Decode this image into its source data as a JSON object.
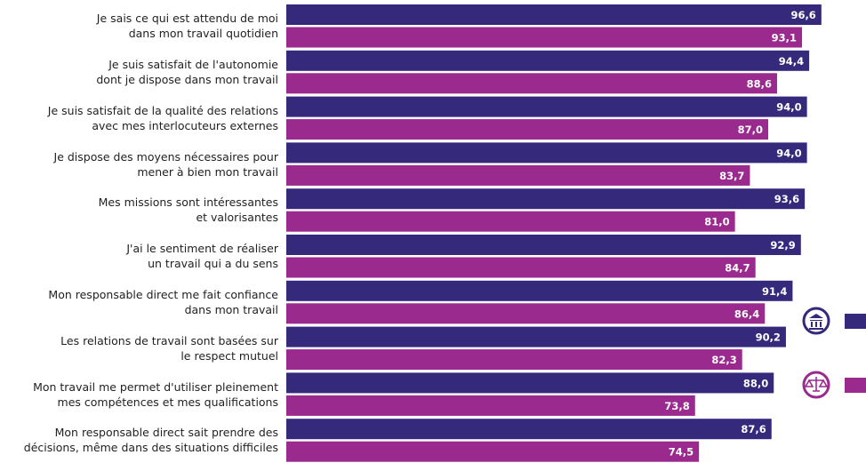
{
  "chart_data": {
    "type": "bar",
    "orientation": "horizontal",
    "categories": [
      "Je sais ce qui est attendu de moi\ndans mon travail quotidien",
      "Je suis satisfait de l'autonomie\ndont je dispose dans mon travail",
      "Je suis satisfait de la qualité des relations\navec mes interlocuteurs externes",
      "Je dispose des moyens nécessaires pour\nmener à bien mon travail",
      "Mes missions sont intéressantes\net valorisantes",
      "J'ai le sentiment de réaliser\nun travail qui a du sens",
      "Mon responsable direct me fait confiance\ndans mon travail",
      "Les relations de travail sont basées sur\nle respect mutuel",
      "Mon travail me permet d'utiliser pleinement\nmes compétences et mes qualifications",
      "Mon responsable direct sait prendre des\ndécisions, même dans des situations difficiles"
    ],
    "series": [
      {
        "color": "#35297c",
        "values": [
          96.6,
          94.4,
          94.0,
          94.0,
          93.6,
          92.9,
          91.4,
          90.2,
          88.0,
          87.6
        ],
        "value_labels": [
          "96,6",
          "94,4",
          "94,0",
          "94,0",
          "93,6",
          "92,9",
          "91,4",
          "90,2",
          "88,0",
          "87,6"
        ]
      },
      {
        "color": "#9a2a8e",
        "values": [
          93.1,
          88.6,
          87.0,
          83.7,
          81.0,
          84.7,
          86.4,
          82.3,
          73.8,
          74.5
        ],
        "value_labels": [
          "93,1",
          "88,6",
          "87,0",
          "83,7",
          "81,0",
          "84,7",
          "86,4",
          "82,3",
          "73,8",
          "74,5"
        ]
      }
    ],
    "xlim": [
      0,
      100
    ]
  }
}
